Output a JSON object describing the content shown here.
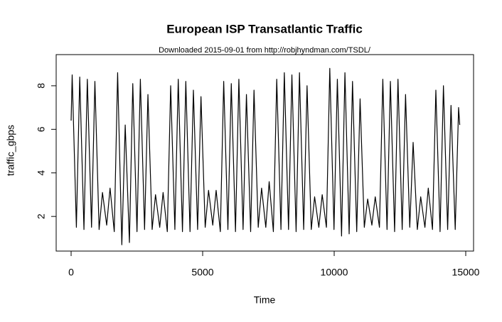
{
  "chart_data": {
    "type": "line",
    "title": "European ISP Transatlantic Traffic",
    "subtitle": "Downloaded 2015-09-01 from http://robjhyndman.com/TSDL/",
    "x_label": "Time",
    "y_label": "traffic_gbps",
    "x": [
      0,
      40,
      200,
      328,
      488,
      616,
      776,
      904,
      1064,
      1192,
      1352,
      1480,
      1640,
      1768,
      1928,
      2056,
      2216,
      2344,
      2504,
      2632,
      2792,
      2920,
      3080,
      3208,
      3368,
      3496,
      3656,
      3784,
      3944,
      4072,
      4232,
      4360,
      4520,
      4648,
      4808,
      4936,
      5096,
      5224,
      5384,
      5512,
      5672,
      5800,
      5960,
      6088,
      6248,
      6376,
      6536,
      6664,
      6824,
      6952,
      7112,
      7240,
      7400,
      7528,
      7688,
      7816,
      7976,
      8104,
      8264,
      8392,
      8552,
      8680,
      8840,
      8968,
      9128,
      9256,
      9416,
      9544,
      9704,
      9832,
      9992,
      10120,
      10280,
      10408,
      10568,
      10696,
      10856,
      10984,
      11144,
      11272,
      11432,
      11560,
      11720,
      11848,
      12008,
      12136,
      12296,
      12424,
      12584,
      12712,
      12872,
      13000,
      13160,
      13288,
      13448,
      13576,
      13736,
      13864,
      14024,
      14152,
      14312,
      14440,
      14600,
      14728,
      14772
    ],
    "series": [
      {
        "name": "traffic_gbps",
        "color": "#000000",
        "values": [
          6.4,
          8.5,
          1.5,
          8.4,
          1.4,
          8.3,
          1.5,
          8.2,
          1.4,
          3.1,
          1.6,
          3.3,
          1.3,
          8.6,
          0.7,
          6.2,
          0.8,
          8.1,
          1.3,
          8.3,
          1.4,
          7.6,
          1.4,
          3.0,
          1.5,
          3.1,
          1.3,
          8.0,
          1.4,
          8.3,
          1.3,
          8.2,
          1.3,
          7.8,
          1.4,
          7.5,
          1.5,
          3.2,
          1.6,
          3.2,
          1.3,
          8.2,
          1.4,
          8.1,
          1.3,
          8.3,
          1.4,
          7.6,
          1.3,
          7.8,
          1.5,
          3.3,
          1.5,
          3.6,
          1.3,
          8.3,
          1.4,
          8.6,
          1.4,
          8.5,
          1.3,
          8.6,
          1.4,
          8.0,
          1.4,
          2.9,
          1.5,
          3.0,
          1.5,
          8.8,
          1.4,
          8.3,
          1.1,
          8.6,
          1.2,
          8.2,
          1.3,
          7.4,
          1.5,
          2.8,
          1.6,
          2.9,
          1.5,
          8.3,
          1.4,
          8.2,
          1.3,
          8.3,
          1.4,
          7.6,
          1.5,
          5.4,
          1.4,
          2.9,
          1.5,
          3.3,
          1.4,
          7.8,
          1.3,
          8.0,
          1.4,
          7.1,
          1.4,
          7.0,
          6.2
        ]
      }
    ],
    "xlim": [
      -568,
      15297
    ],
    "ylim": [
      0.41,
      9.43
    ],
    "xticks": [
      0,
      5000,
      10000,
      15000
    ],
    "yticks": [
      2,
      4,
      6,
      8
    ]
  }
}
